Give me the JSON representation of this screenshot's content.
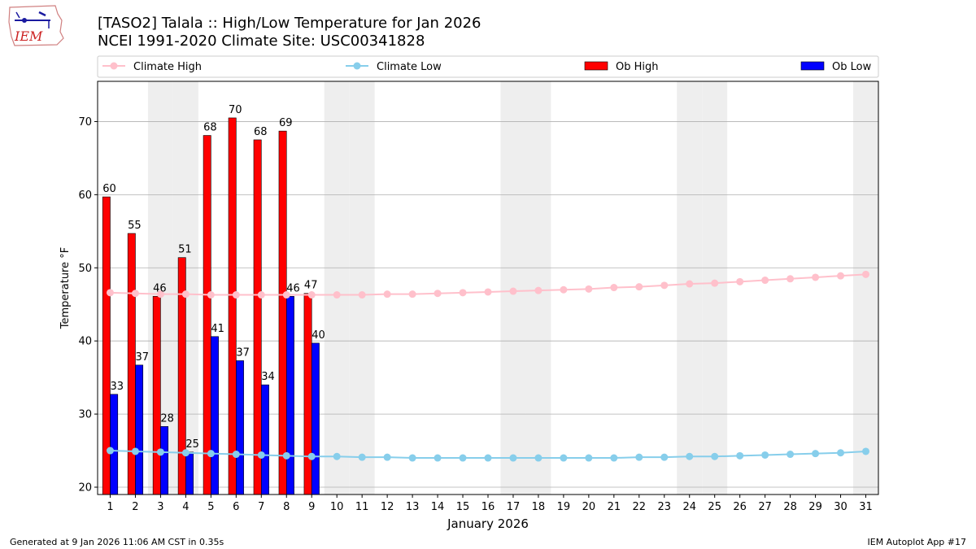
{
  "header": {
    "title_line1": "[TASO2] Talala :: High/Low Temperature for Jan 2026",
    "title_line2": "NCEI 1991-2020 Climate Site: USC00341828"
  },
  "logo": {
    "text": "IEM"
  },
  "footer": {
    "left": "Generated at 9 Jan 2026 11:06 AM CST in 0.35s",
    "right": "IEM Autoplot App #17"
  },
  "colors": {
    "climate_high": "#ffc0cb",
    "climate_low": "#87ceeb",
    "ob_high": "#ff0000",
    "ob_low": "#0000ff",
    "weekend_shade": "#eeeeee",
    "grid": "#b0b0b0"
  },
  "chart_data": {
    "type": "bar",
    "xlabel": "January 2026",
    "ylabel": "Temperature °F",
    "xlim": [
      0.5,
      31.5
    ],
    "ylim": [
      19,
      75.5
    ],
    "grid": "horizontal",
    "legend_position": "top",
    "days": [
      1,
      2,
      3,
      4,
      5,
      6,
      7,
      8,
      9,
      10,
      11,
      12,
      13,
      14,
      15,
      16,
      17,
      18,
      19,
      20,
      21,
      22,
      23,
      24,
      25,
      26,
      27,
      28,
      29,
      30,
      31
    ],
    "y_ticks": [
      20,
      30,
      40,
      50,
      60,
      70
    ],
    "shaded_days": [
      3,
      4,
      10,
      11,
      17,
      18,
      24,
      25,
      31
    ],
    "series": [
      {
        "name": "Climate High",
        "kind": "line",
        "values": [
          46.6,
          46.5,
          46.4,
          46.4,
          46.3,
          46.3,
          46.3,
          46.3,
          46.3,
          46.3,
          46.3,
          46.4,
          46.4,
          46.5,
          46.6,
          46.7,
          46.8,
          46.9,
          47.0,
          47.1,
          47.3,
          47.4,
          47.6,
          47.8,
          47.9,
          48.1,
          48.3,
          48.5,
          48.7,
          48.9,
          49.1
        ]
      },
      {
        "name": "Climate Low",
        "kind": "line",
        "values": [
          25.0,
          24.9,
          24.8,
          24.7,
          24.6,
          24.5,
          24.4,
          24.3,
          24.2,
          24.2,
          24.1,
          24.1,
          24.0,
          24.0,
          24.0,
          24.0,
          24.0,
          24.0,
          24.0,
          24.0,
          24.0,
          24.1,
          24.1,
          24.2,
          24.2,
          24.3,
          24.4,
          24.5,
          24.6,
          24.7,
          24.9
        ]
      },
      {
        "name": "Ob High",
        "kind": "bar",
        "values": [
          59.7,
          54.7,
          46.1,
          51.4,
          68.1,
          70.5,
          67.5,
          68.7,
          46.5
        ],
        "labels": [
          "60",
          "55",
          "46",
          "51",
          "68",
          "70",
          "68",
          "69",
          "47"
        ]
      },
      {
        "name": "Ob Low",
        "kind": "bar",
        "values": [
          32.7,
          36.7,
          28.3,
          24.8,
          40.6,
          37.3,
          34.0,
          46.1,
          39.7
        ],
        "labels": [
          "33",
          "37",
          "28",
          "25",
          "41",
          "37",
          "34",
          "46",
          "40"
        ]
      }
    ]
  }
}
